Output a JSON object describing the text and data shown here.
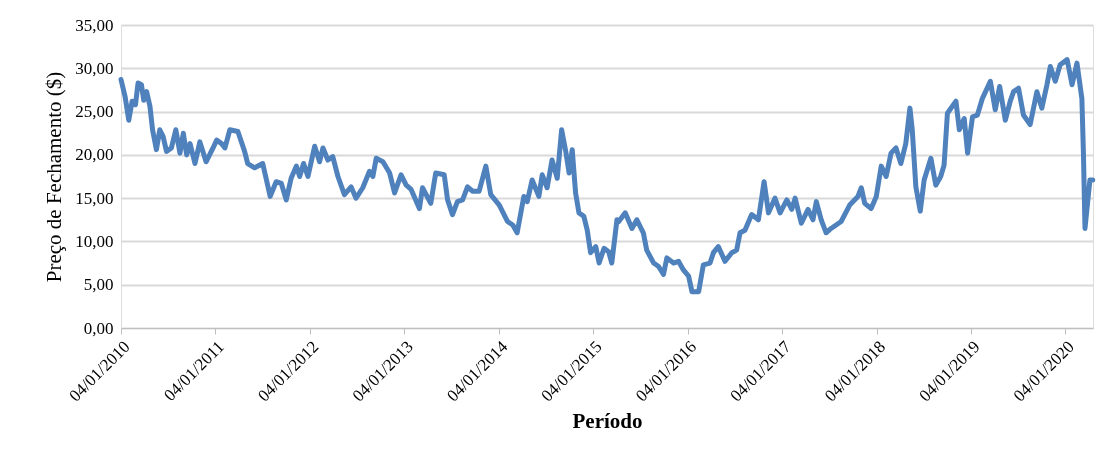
{
  "chart_data": {
    "type": "line",
    "xlabel": "Período",
    "ylabel": "Preço de Fechamento ($)",
    "xlim": [
      "2010-01-04",
      "2020-04-20"
    ],
    "xticks": [
      {
        "value": "2010-01-04",
        "label": "04/01/2010"
      },
      {
        "value": "2011-01-04",
        "label": "04/01/2011"
      },
      {
        "value": "2012-01-04",
        "label": "04/01/2012"
      },
      {
        "value": "2013-01-04",
        "label": "04/01/2013"
      },
      {
        "value": "2014-01-04",
        "label": "04/01/2014"
      },
      {
        "value": "2015-01-04",
        "label": "04/01/2015"
      },
      {
        "value": "2016-01-04",
        "label": "04/01/2016"
      },
      {
        "value": "2017-01-04",
        "label": "04/01/2017"
      },
      {
        "value": "2018-01-04",
        "label": "04/01/2018"
      },
      {
        "value": "2019-01-04",
        "label": "04/01/2019"
      },
      {
        "value": "2020-01-04",
        "label": "04/01/2020"
      }
    ],
    "ylim": [
      0,
      35
    ],
    "yticks": [
      {
        "value": 0,
        "label": "0,00"
      },
      {
        "value": 5,
        "label": "5,00"
      },
      {
        "value": 10,
        "label": "10,00"
      },
      {
        "value": 15,
        "label": "15,00"
      },
      {
        "value": 20,
        "label": "20,00"
      },
      {
        "value": 25,
        "label": "25,00"
      },
      {
        "value": 30,
        "label": "30,00"
      },
      {
        "value": 35,
        "label": "35,00"
      }
    ],
    "grid": "y",
    "marker": "none",
    "line_style": "solid",
    "x": [
      "2010-01-04",
      "2010-01-20",
      "2010-02-03",
      "2010-02-16",
      "2010-03-01",
      "2010-03-11",
      "2010-03-24",
      "2010-04-02",
      "2010-04-13",
      "2010-04-26",
      "2010-05-06",
      "2010-05-21",
      "2010-06-03",
      "2010-06-16",
      "2010-06-29",
      "2010-07-18",
      "2010-08-04",
      "2010-08-20",
      "2010-09-02",
      "2010-09-15",
      "2010-09-28",
      "2010-10-17",
      "2010-11-05",
      "2010-11-29",
      "2010-12-26",
      "2011-01-09",
      "2011-01-28",
      "2011-02-10",
      "2011-03-01",
      "2011-04-01",
      "2011-04-27",
      "2011-05-09",
      "2011-06-05",
      "2011-07-06",
      "2011-08-04",
      "2011-08-27",
      "2011-09-16",
      "2011-10-05",
      "2011-10-24",
      "2011-11-13",
      "2011-11-26",
      "2011-12-11",
      "2011-12-28",
      "2012-01-23",
      "2012-02-11",
      "2012-02-24",
      "2012-03-14",
      "2012-04-02",
      "2012-04-22",
      "2012-05-17",
      "2012-06-12",
      "2012-07-01",
      "2012-07-27",
      "2012-08-22",
      "2012-09-04",
      "2012-09-17",
      "2012-10-13",
      "2012-11-08",
      "2012-11-27",
      "2012-12-22",
      "2013-01-11",
      "2013-01-30",
      "2013-03-03",
      "2013-03-15",
      "2013-04-16",
      "2013-05-05",
      "2013-06-07",
      "2013-06-20",
      "2013-07-09",
      "2013-07-28",
      "2013-08-17",
      "2013-09-05",
      "2013-09-25",
      "2013-10-20",
      "2013-11-15",
      "2013-12-04",
      "2014-01-06",
      "2014-02-07",
      "2014-02-27",
      "2014-03-16",
      "2014-04-11",
      "2014-04-24",
      "2014-05-13",
      "2014-06-08",
      "2014-06-21",
      "2014-07-10",
      "2014-07-29",
      "2014-08-18",
      "2014-09-04",
      "2014-09-20",
      "2014-10-03",
      "2014-10-15",
      "2014-10-28",
      "2014-11-10",
      "2014-11-29",
      "2014-12-12",
      "2014-12-25",
      "2015-01-14",
      "2015-01-27",
      "2015-02-15",
      "2015-03-05",
      "2015-03-17",
      "2015-04-06",
      "2015-04-13",
      "2015-05-08",
      "2015-06-03",
      "2015-06-22",
      "2015-07-17",
      "2015-07-30",
      "2015-08-26",
      "2015-09-14",
      "2015-10-03",
      "2015-10-16",
      "2015-11-11",
      "2015-11-30",
      "2015-12-19",
      "2016-01-08",
      "2016-01-21",
      "2016-02-16",
      "2016-03-05",
      "2016-03-31",
      "2016-04-13",
      "2016-05-02",
      "2016-05-28",
      "2016-06-23",
      "2016-07-12",
      "2016-07-25",
      "2016-08-13",
      "2016-09-08",
      "2016-10-04",
      "2016-10-26",
      "2016-11-12",
      "2016-12-07",
      "2016-12-27",
      "2017-01-22",
      "2017-02-10",
      "2017-02-23",
      "2017-03-19",
      "2017-04-14",
      "2017-05-03",
      "2017-05-16",
      "2017-06-04",
      "2017-06-23",
      "2017-07-12",
      "2017-08-20",
      "2017-09-22",
      "2017-10-24",
      "2017-11-06",
      "2017-11-19",
      "2017-12-14",
      "2018-01-03",
      "2018-01-22",
      "2018-02-10",
      "2018-03-01",
      "2018-03-20",
      "2018-04-08",
      "2018-04-27",
      "2018-05-13",
      "2018-05-22",
      "2018-06-05",
      "2018-06-22",
      "2018-07-07",
      "2018-08-02",
      "2018-08-21",
      "2018-09-09",
      "2018-09-22",
      "2018-10-05",
      "2018-11-07",
      "2018-11-20",
      "2018-12-09",
      "2018-12-22",
      "2019-01-10",
      "2019-01-29",
      "2019-02-17",
      "2019-03-20",
      "2019-04-08",
      "2019-04-25",
      "2019-05-17",
      "2019-06-05",
      "2019-06-18",
      "2019-07-07",
      "2019-07-26",
      "2019-08-21",
      "2019-09-16",
      "2019-10-05",
      "2019-10-25",
      "2019-11-07",
      "2019-11-26",
      "2019-12-15",
      "2020-01-11",
      "2020-01-30",
      "2020-02-18",
      "2020-03-08",
      "2020-03-14",
      "2020-03-20",
      "2020-04-08",
      "2020-04-19"
    ],
    "series": [
      {
        "color": "#4f81bd",
        "values": [
          28.7,
          26.7,
          24.0,
          26.2,
          25.8,
          28.3,
          28.1,
          26.3,
          27.3,
          25.6,
          22.9,
          20.6,
          22.9,
          22.1,
          20.4,
          20.8,
          22.9,
          20.2,
          22.5,
          20.0,
          21.3,
          19.0,
          21.5,
          19.2,
          20.8,
          21.7,
          21.3,
          20.8,
          22.9,
          22.7,
          20.4,
          19.0,
          18.5,
          19.0,
          15.2,
          16.9,
          16.7,
          14.8,
          17.3,
          18.7,
          17.5,
          19.0,
          17.5,
          21.0,
          19.2,
          20.8,
          19.4,
          19.8,
          17.5,
          15.4,
          16.3,
          15.0,
          16.2,
          18.1,
          17.5,
          19.6,
          19.2,
          17.9,
          15.6,
          17.7,
          16.5,
          16.0,
          13.8,
          16.2,
          14.4,
          17.9,
          17.7,
          14.8,
          13.1,
          14.6,
          14.8,
          16.3,
          15.8,
          15.8,
          18.7,
          15.4,
          14.2,
          12.3,
          11.9,
          11.0,
          15.2,
          14.6,
          17.1,
          15.2,
          17.7,
          16.2,
          19.4,
          17.3,
          22.9,
          20.4,
          17.9,
          20.6,
          15.6,
          13.3,
          12.9,
          11.3,
          8.7,
          9.4,
          7.5,
          9.2,
          8.8,
          7.5,
          12.5,
          12.3,
          13.3,
          11.5,
          12.5,
          11.0,
          9.0,
          7.5,
          7.1,
          6.2,
          8.1,
          7.5,
          7.7,
          6.7,
          6.0,
          4.2,
          4.2,
          7.3,
          7.5,
          8.7,
          9.4,
          7.7,
          8.7,
          9.0,
          11.0,
          11.3,
          13.1,
          12.5,
          16.9,
          13.3,
          15.0,
          13.3,
          14.8,
          13.7,
          15.0,
          12.1,
          13.7,
          12.5,
          14.6,
          12.5,
          11.0,
          11.5,
          12.3,
          14.2,
          15.2,
          16.2,
          14.4,
          13.8,
          15.2,
          18.7,
          17.5,
          20.2,
          20.8,
          19.0,
          21.3,
          25.4,
          22.9,
          16.3,
          13.5,
          17.1,
          19.6,
          16.5,
          17.5,
          18.8,
          24.8,
          26.2,
          22.9,
          24.2,
          20.2,
          24.4,
          24.6,
          26.5,
          28.5,
          25.2,
          27.9,
          24.0,
          26.2,
          27.3,
          27.7,
          24.6,
          23.5,
          27.3,
          25.4,
          28.1,
          30.2,
          28.5,
          30.4,
          31.0,
          28.1,
          30.6,
          26.5,
          20.2,
          11.5,
          17.1,
          17.1
        ]
      }
    ]
  }
}
